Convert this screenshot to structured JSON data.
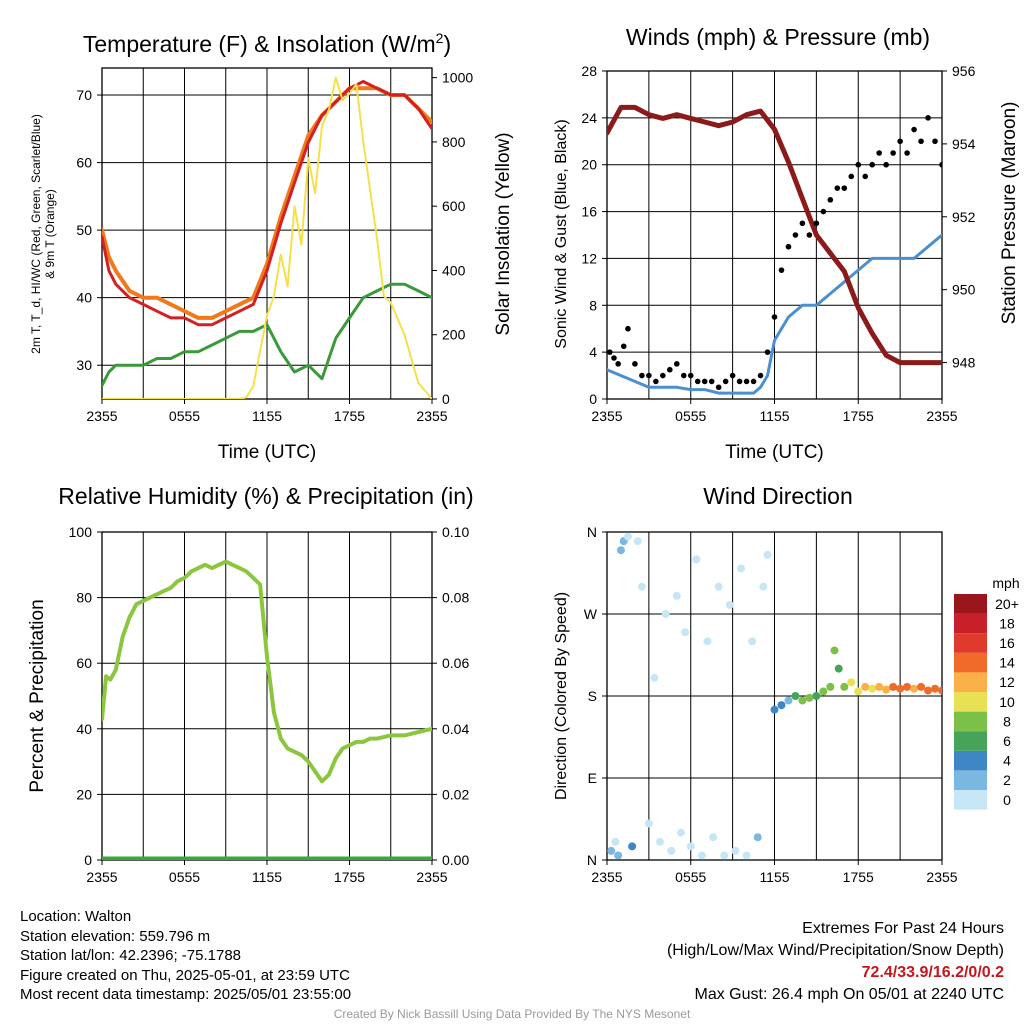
{
  "chart_data": [
    {
      "type": "line",
      "title": "Temperature (F) & Insolation (W/m²)",
      "xlabel": "Time (UTC)",
      "ylabel": "2m T, T_d, HI/WC (Red, Green, Scarlet/Blue) & 9m T (Orange)",
      "y2label": "Solar Insolation (Yellow)",
      "x_ticks": [
        "2355",
        "0555",
        "1155",
        "1755",
        "2355"
      ],
      "y_ticks": [
        "30",
        "40",
        "50",
        "60",
        "70"
      ],
      "y2_ticks": [
        "0",
        "200",
        "400",
        "600",
        "800",
        "1000"
      ],
      "ylim": [
        25,
        74
      ],
      "y2lim": [
        0,
        1030
      ],
      "xlim": [
        0,
        24
      ],
      "grid": true,
      "series": [
        {
          "color": "#f07a1a",
          "axis": "left",
          "width": 4,
          "x": [
            0,
            0.5,
            1,
            2,
            3,
            4,
            5,
            6,
            7,
            8,
            9,
            10,
            11,
            12,
            13,
            14,
            15,
            16,
            17,
            18,
            19,
            20,
            21,
            22,
            23,
            24
          ],
          "y": [
            50,
            46,
            44,
            41,
            40,
            40,
            39,
            38,
            37,
            37,
            38,
            39,
            40,
            45,
            52,
            58,
            64,
            67,
            69,
            71,
            71,
            71,
            70,
            70,
            68,
            66
          ]
        },
        {
          "color": "#d42020",
          "axis": "left",
          "width": 3,
          "x": [
            0,
            0.5,
            1,
            2,
            3,
            4,
            5,
            6,
            7,
            8,
            9,
            10,
            11,
            12,
            13,
            14,
            15,
            16,
            17,
            18,
            19,
            20,
            21,
            22,
            23,
            24
          ],
          "y": [
            49,
            44,
            42,
            40,
            39,
            38,
            37,
            37,
            36,
            36,
            37,
            38,
            39,
            44,
            51,
            57,
            63,
            67,
            69,
            71,
            72,
            71,
            70,
            70,
            68,
            65
          ]
        },
        {
          "color": "#3a9a3a",
          "axis": "left",
          "width": 3,
          "x": [
            0,
            0.5,
            1,
            2,
            3,
            4,
            5,
            6,
            7,
            8,
            9,
            10,
            11,
            12,
            13,
            14,
            15,
            16,
            17,
            18,
            19,
            20,
            21,
            22,
            23,
            24
          ],
          "y": [
            27,
            29,
            30,
            30,
            30,
            31,
            31,
            32,
            32,
            33,
            34,
            35,
            35,
            36,
            32,
            29,
            30,
            28,
            34,
            37,
            40,
            41,
            42,
            42,
            41,
            40
          ]
        },
        {
          "color": "#f6e04a",
          "axis": "right",
          "width": 2,
          "x": [
            0,
            1,
            2,
            3,
            4,
            5,
            6,
            7,
            8,
            9,
            10,
            10.5,
            11,
            11.5,
            12,
            12.5,
            13,
            13.5,
            14,
            14.5,
            15,
            15.5,
            16,
            16.5,
            17,
            17.5,
            18,
            18.5,
            19,
            19.5,
            20,
            20.5,
            21,
            21.5,
            22,
            23,
            24
          ],
          "y": [
            0,
            0,
            0,
            0,
            0,
            0,
            0,
            0,
            0,
            0,
            0,
            5,
            40,
            150,
            260,
            320,
            450,
            350,
            600,
            480,
            750,
            640,
            850,
            900,
            1000,
            930,
            950,
            980,
            800,
            650,
            500,
            320,
            300,
            250,
            200,
            50,
            0
          ]
        }
      ]
    },
    {
      "type": "line",
      "title": "Winds (mph) & Pressure (mb)",
      "xlabel": "Time (UTC)",
      "ylabel": "Sonic Wind & Gust (Blue, Black)",
      "y2label": "Station Pressure (Maroon)",
      "x_ticks": [
        "2355",
        "0555",
        "1155",
        "1755",
        "2355"
      ],
      "y_ticks": [
        "0",
        "4",
        "8",
        "12",
        "16",
        "20",
        "24",
        "28"
      ],
      "y2_ticks": [
        "948",
        "950",
        "952",
        "954",
        "956"
      ],
      "ylim": [
        0,
        28
      ],
      "y2lim": [
        947.0,
        956.0
      ],
      "xlim": [
        0,
        24
      ],
      "grid": true,
      "series": [
        {
          "color": "#4a90d0",
          "axis": "left",
          "width": 3,
          "x": [
            0,
            1,
            2,
            3,
            4,
            5,
            6,
            7,
            8,
            9,
            10,
            10.5,
            11,
            11.5,
            12,
            13,
            14,
            15,
            16,
            17,
            18,
            19,
            20,
            21,
            22,
            23,
            24
          ],
          "y": [
            2.5,
            2,
            1.5,
            1,
            1,
            1,
            0.8,
            0.8,
            0.5,
            0.5,
            0.5,
            0.5,
            1,
            2,
            5,
            7,
            8,
            8,
            9,
            10,
            11,
            12,
            12,
            12,
            12,
            13,
            14
          ]
        },
        {
          "color": "#8b1a1a",
          "axis": "right",
          "width": 5,
          "x": [
            0,
            1,
            2,
            3,
            4,
            5,
            6,
            7,
            8,
            9,
            10,
            11,
            12,
            13,
            14,
            15,
            16,
            17,
            18,
            19,
            20,
            21,
            22,
            23,
            24
          ],
          "y": [
            954.3,
            955.0,
            955.0,
            954.8,
            954.7,
            954.8,
            954.7,
            954.6,
            954.5,
            954.6,
            954.8,
            954.9,
            954.4,
            953.5,
            952.5,
            951.5,
            951.0,
            950.5,
            949.5,
            948.8,
            948.2,
            948.0,
            948.0,
            948.0,
            948.0
          ]
        },
        {
          "color": "#000000",
          "axis": "left",
          "type": "scatter",
          "x": [
            0.2,
            0.5,
            0.8,
            1.2,
            1.5,
            2,
            2.5,
            3,
            3.5,
            4,
            4.5,
            5,
            5.5,
            6,
            6.5,
            7,
            7.5,
            8,
            8.5,
            9,
            9.5,
            10,
            10.5,
            11,
            11.5,
            12,
            12.5,
            13,
            13.5,
            14,
            14.5,
            15,
            15.5,
            16,
            16.5,
            17,
            17.5,
            18,
            18.5,
            19,
            19.5,
            20,
            20.5,
            21,
            21.5,
            22,
            22.5,
            23,
            23.5,
            24
          ],
          "y": [
            4,
            3.5,
            3,
            4.5,
            6,
            3,
            2,
            2,
            1.5,
            2,
            2.5,
            3,
            2,
            2,
            1.5,
            1.5,
            1.5,
            1,
            1.5,
            2,
            1.5,
            1.5,
            1.5,
            2,
            4,
            7,
            11,
            13,
            14,
            15,
            14,
            15,
            16,
            17,
            18,
            18,
            19,
            20,
            19,
            20,
            21,
            20,
            21,
            22,
            21,
            23,
            22,
            24,
            22,
            20
          ]
        }
      ]
    },
    {
      "type": "line",
      "title": "Relative Humidity (%) & Precipitation (in)",
      "xlabel": "",
      "ylabel": "Percent & Precipitation",
      "x_ticks": [
        "2355",
        "0555",
        "1155",
        "1755",
        "2355"
      ],
      "y_ticks": [
        "0",
        "20",
        "40",
        "60",
        "80",
        "100"
      ],
      "y2_ticks": [
        "0.00",
        "0.02",
        "0.04",
        "0.06",
        "0.08",
        "0.10"
      ],
      "ylim": [
        0,
        100
      ],
      "y2lim": [
        0,
        0.1
      ],
      "xlim": [
        0,
        24
      ],
      "grid": true,
      "series": [
        {
          "color": "#8cc63f",
          "axis": "left",
          "width": 4,
          "x": [
            0,
            0.3,
            0.6,
            1,
            1.5,
            2,
            2.5,
            3,
            3.5,
            4,
            4.5,
            5,
            5.5,
            6,
            6.5,
            7,
            7.5,
            8,
            8.5,
            9,
            9.5,
            10,
            10.5,
            11,
            11.5,
            12,
            12.5,
            13,
            13.5,
            14,
            14.5,
            15,
            15.5,
            16,
            16.5,
            17,
            17.5,
            18,
            18.5,
            19,
            19.5,
            20,
            21,
            22,
            23,
            24
          ],
          "y": [
            43,
            56,
            55,
            58,
            68,
            74,
            78,
            79,
            80,
            81,
            82,
            83,
            85,
            86,
            88,
            89,
            90,
            89,
            90,
            91,
            90,
            89,
            88,
            86,
            84,
            62,
            45,
            37,
            34,
            33,
            32,
            30,
            27,
            24,
            26,
            31,
            34,
            35,
            36,
            36,
            37,
            37,
            38,
            38,
            39,
            40
          ]
        },
        {
          "color": "#3aa83a",
          "axis": "right",
          "width": 7,
          "x": [
            0,
            24
          ],
          "y": [
            0,
            0
          ]
        }
      ]
    },
    {
      "type": "scatter",
      "title": "Wind Direction",
      "xlabel": "",
      "ylabel": "Direction (Colored By Speed)",
      "x_ticks": [
        "2355",
        "0555",
        "1155",
        "1755",
        "2355"
      ],
      "y_ticks": [
        "N",
        "E",
        "S",
        "W",
        "N"
      ],
      "ylim": [
        0,
        360
      ],
      "xlim": [
        0,
        24
      ],
      "grid": true,
      "legend": {
        "title": "mph",
        "levels": [
          "0",
          "2",
          "4",
          "6",
          "8",
          "10",
          "12",
          "14",
          "16",
          "18",
          "20+"
        ],
        "colors": [
          "#c6e6f6",
          "#7ab8e2",
          "#3f86c6",
          "#45a35a",
          "#7cc04a",
          "#e8e055",
          "#f9b046",
          "#f06a2a",
          "#df3a2c",
          "#c8202a",
          "#9a161c"
        ]
      },
      "points": [
        {
          "x": 0.3,
          "y": 10,
          "s": 2
        },
        {
          "x": 0.6,
          "y": 20,
          "s": 1
        },
        {
          "x": 0.8,
          "y": 5,
          "s": 3
        },
        {
          "x": 1.0,
          "y": 340,
          "s": 3
        },
        {
          "x": 1.2,
          "y": 350,
          "s": 2
        },
        {
          "x": 1.5,
          "y": 355,
          "s": 1
        },
        {
          "x": 1.8,
          "y": 15,
          "s": 4
        },
        {
          "x": 2.2,
          "y": 350,
          "s": 1
        },
        {
          "x": 2.5,
          "y": 300,
          "s": 0
        },
        {
          "x": 3.0,
          "y": 40,
          "s": 1
        },
        {
          "x": 3.4,
          "y": 200,
          "s": 0
        },
        {
          "x": 3.8,
          "y": 20,
          "s": 0
        },
        {
          "x": 4.2,
          "y": 270,
          "s": 1
        },
        {
          "x": 4.6,
          "y": 10,
          "s": 1
        },
        {
          "x": 5.0,
          "y": 290,
          "s": 0
        },
        {
          "x": 5.3,
          "y": 30,
          "s": 0
        },
        {
          "x": 5.6,
          "y": 250,
          "s": 1
        },
        {
          "x": 6.0,
          "y": 15,
          "s": 1
        },
        {
          "x": 6.4,
          "y": 330,
          "s": 0
        },
        {
          "x": 6.8,
          "y": 5,
          "s": 0
        },
        {
          "x": 7.2,
          "y": 240,
          "s": 1
        },
        {
          "x": 7.6,
          "y": 25,
          "s": 0
        },
        {
          "x": 8.0,
          "y": 300,
          "s": 1
        },
        {
          "x": 8.4,
          "y": 5,
          "s": 0
        },
        {
          "x": 8.8,
          "y": 280,
          "s": 1
        },
        {
          "x": 9.2,
          "y": 10,
          "s": 0
        },
        {
          "x": 9.6,
          "y": 320,
          "s": 1
        },
        {
          "x": 10.0,
          "y": 5,
          "s": 1
        },
        {
          "x": 10.4,
          "y": 240,
          "s": 1
        },
        {
          "x": 10.8,
          "y": 25,
          "s": 2
        },
        {
          "x": 11.2,
          "y": 300,
          "s": 1
        },
        {
          "x": 11.5,
          "y": 335,
          "s": 1
        },
        {
          "x": 12.0,
          "y": 165,
          "s": 4
        },
        {
          "x": 12.5,
          "y": 170,
          "s": 4
        },
        {
          "x": 13.0,
          "y": 175,
          "s": 3
        },
        {
          "x": 13.5,
          "y": 180,
          "s": 6
        },
        {
          "x": 14.0,
          "y": 175,
          "s": 8
        },
        {
          "x": 14.5,
          "y": 178,
          "s": 8
        },
        {
          "x": 15.0,
          "y": 180,
          "s": 7
        },
        {
          "x": 15.5,
          "y": 185,
          "s": 9
        },
        {
          "x": 16.0,
          "y": 190,
          "s": 8
        },
        {
          "x": 16.3,
          "y": 230,
          "s": 8
        },
        {
          "x": 16.6,
          "y": 210,
          "s": 7
        },
        {
          "x": 17.0,
          "y": 190,
          "s": 9
        },
        {
          "x": 17.5,
          "y": 195,
          "s": 10
        },
        {
          "x": 18.0,
          "y": 185,
          "s": 10
        },
        {
          "x": 18.5,
          "y": 190,
          "s": 12
        },
        {
          "x": 19.0,
          "y": 188,
          "s": 11
        },
        {
          "x": 19.5,
          "y": 190,
          "s": 12
        },
        {
          "x": 20.0,
          "y": 187,
          "s": 13
        },
        {
          "x": 20.5,
          "y": 190,
          "s": 14
        },
        {
          "x": 21.0,
          "y": 188,
          "s": 15
        },
        {
          "x": 21.5,
          "y": 190,
          "s": 14
        },
        {
          "x": 22.0,
          "y": 188,
          "s": 13
        },
        {
          "x": 22.5,
          "y": 190,
          "s": 14
        },
        {
          "x": 23.0,
          "y": 186,
          "s": 15
        },
        {
          "x": 23.5,
          "y": 188,
          "s": 14
        },
        {
          "x": 24.0,
          "y": 186,
          "s": 15
        }
      ]
    }
  ],
  "info": {
    "location": "Location: Walton",
    "elevation": "Station elevation: 559.796 m",
    "latlon": "Station lat/lon: 42.2396; -75.1788",
    "created": "Figure created on Thu, 2025-05-01, at 23:59 UTC",
    "recent": "Most recent data timestamp: 2025/05/01 23:55:00"
  },
  "extremes": {
    "heading": "Extremes For Past 24 Hours",
    "subheading": "(High/Low/Max Wind/Precipitation/Snow Depth)",
    "values": "72.4/33.9/16.2/0/0.2",
    "gust": "Max Gust: 26.4 mph On 05/01 at 2240 UTC"
  },
  "credit": "Created By Nick Bassill Using Data Provided By The NYS Mesonet"
}
